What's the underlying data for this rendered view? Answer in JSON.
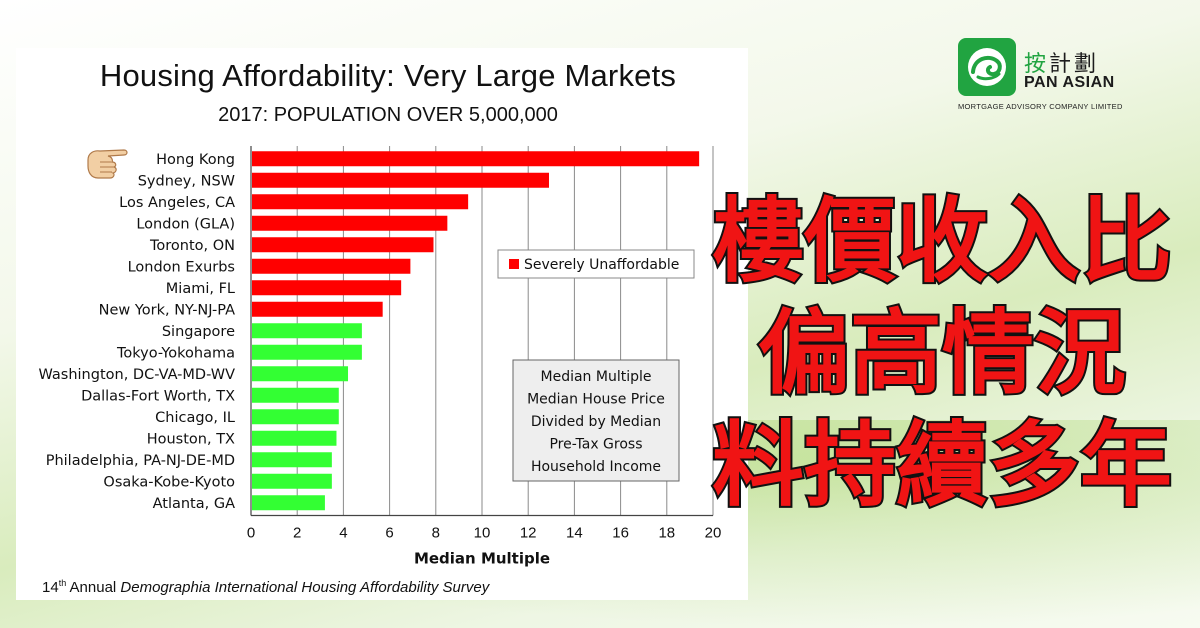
{
  "chart_data": {
    "type": "bar",
    "orientation": "horizontal",
    "title": "Housing Affordability: Very Large Markets",
    "subtitle": "2017: POPULATION OVER 5,000,000",
    "xlabel": "Median Multiple",
    "xlim": [
      0,
      20
    ],
    "xticks": [
      "0",
      "2",
      "4",
      "6",
      "8",
      "10",
      "12",
      "14",
      "16",
      "18",
      "20"
    ],
    "grid": "vertical",
    "categories": [
      "Hong Kong",
      "Sydney, NSW",
      "Los Angeles, CA",
      "London (GLA)",
      "Toronto, ON",
      "London Exurbs",
      "Miami, FL",
      "New York, NY-NJ-PA",
      "Singapore",
      "Tokyo-Yokohama",
      "Washington, DC-VA-MD-WV",
      "Dallas-Fort Worth, TX",
      "Chicago, IL",
      "Houston, TX",
      "Philadelphia, PA-NJ-DE-MD",
      "Osaka-Kobe-Kyoto",
      "Atlanta, GA"
    ],
    "values": [
      19.4,
      12.9,
      9.4,
      8.5,
      7.9,
      6.9,
      6.5,
      5.7,
      4.8,
      4.8,
      4.2,
      3.8,
      3.8,
      3.7,
      3.5,
      3.5,
      3.2
    ],
    "bar_colors": [
      "#ff0000",
      "#ff0000",
      "#ff0000",
      "#ff0000",
      "#ff0000",
      "#ff0000",
      "#ff0000",
      "#ff0000",
      "#33ff33",
      "#33ff33",
      "#33ff33",
      "#33ff33",
      "#33ff33",
      "#33ff33",
      "#33ff33",
      "#33ff33",
      "#33ff33"
    ],
    "legend": {
      "label": "Severely Unaffordable",
      "color": "#ff0000",
      "placement": "right-middle"
    },
    "annotation_box": [
      "Median Multiple",
      "Median House Price",
      "Divided by Median",
      "Pre-Tax Gross",
      "Household Income"
    ],
    "pointer_icon": "pointing-hand-icon",
    "footnote": {
      "prefix": "14",
      "sup": "th",
      "middle": " Annual ",
      "italic": "Demographia International Housing Affordability Survey"
    }
  },
  "logo": {
    "cn_first": "按",
    "cn_rest": "計劃",
    "en": "PAN ASIAN",
    "sub": "MORTGAGE ADVISORY COMPANY LIMITED",
    "icon": "shell-logo-icon",
    "color": "#21a441"
  },
  "headline": {
    "lines": [
      "樓價收入比",
      "偏高情況",
      "料持續多年"
    ],
    "color": "#f01414"
  }
}
